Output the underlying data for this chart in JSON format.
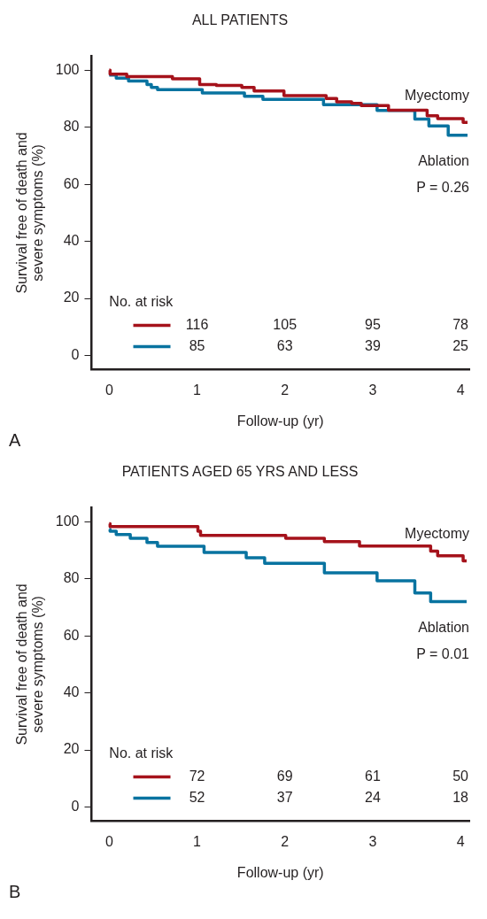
{
  "chart_data": [
    {
      "type": "step",
      "title": "ALL PATIENTS",
      "xlabel": "Follow-up (yr)",
      "ylabel": "Survival free of death and\nsevere symptoms (%)",
      "xlim": [
        -0.2,
        4.1
      ],
      "xticks": [
        0,
        1,
        2,
        3,
        4
      ],
      "ylim": [
        -5,
        105
      ],
      "yticks": [
        0,
        20,
        40,
        60,
        80,
        100
      ],
      "grid": false,
      "legend": false,
      "marker": "none",
      "line_style": "solid",
      "series": [
        {
          "name": "Myectomy",
          "color": "#a5121b",
          "x": [
            0,
            0.01,
            0.2,
            0.72,
            1.03,
            1.22,
            1.51,
            1.65,
            1.99,
            2.47,
            2.59,
            2.76,
            2.87,
            3.18,
            3.62,
            3.74,
            4.03,
            4.08
          ],
          "values": [
            100,
            98.6,
            97.8,
            97,
            95,
            94.7,
            94,
            92.7,
            91.1,
            90.1,
            88.9,
            88.4,
            87.6,
            86,
            84,
            83,
            81.7,
            81.7
          ]
        },
        {
          "name": "Ablation",
          "color": "#0873a0",
          "x": [
            0,
            0.08,
            0.22,
            0.43,
            0.48,
            0.55,
            1.06,
            1.54,
            1.75,
            2.44,
            3.05,
            3.48,
            3.64,
            3.86,
            4.08
          ],
          "values": [
            98.3,
            97.2,
            96.2,
            95,
            94,
            93.2,
            92,
            90.9,
            89.8,
            87.9,
            85.9,
            82.9,
            80.5,
            77.2,
            77.2
          ]
        }
      ],
      "annotations": [
        "P = 0.26",
        "No. at risk",
        "116",
        "105",
        "95",
        "78",
        "85",
        "63",
        "39",
        "25",
        "A"
      ]
    },
    {
      "type": "step",
      "title": "PATIENTS AGED 65 YRS AND LESS",
      "xlabel": "Follow-up (yr)",
      "ylabel": "Survival free of death and\nsevere symptoms (%)",
      "xlim": [
        -0.2,
        4.1
      ],
      "xticks": [
        0,
        1,
        2,
        3,
        4
      ],
      "ylim": [
        -5,
        105
      ],
      "yticks": [
        0,
        20,
        40,
        60,
        80,
        100
      ],
      "grid": false,
      "legend": false,
      "marker": "none",
      "line_style": "solid",
      "series": [
        {
          "name": "Myectomy",
          "color": "#a5121b",
          "x": [
            0,
            0.01,
            1.01,
            1.04,
            2.01,
            2.45,
            2.85,
            3.66,
            3.74,
            4.03,
            4.07
          ],
          "values": [
            99.3,
            98.3,
            96.7,
            95.2,
            94.2,
            93,
            91.5,
            89.7,
            88.1,
            86.3,
            86.3
          ]
        },
        {
          "name": "Ablation",
          "color": "#0873a0",
          "x": [
            0,
            0.01,
            0.08,
            0.24,
            0.43,
            0.55,
            1.08,
            1.56,
            1.77,
            2.45,
            3.05,
            3.48,
            3.66,
            4.07
          ],
          "values": [
            97.3,
            96.7,
            95.5,
            94.2,
            92.7,
            91.4,
            89.2,
            87.4,
            85.4,
            82.1,
            79.3,
            75,
            72,
            72
          ]
        }
      ],
      "annotations": [
        "P = 0.01",
        "No. at risk",
        "72",
        "69",
        "61",
        "50",
        "52",
        "37",
        "24",
        "18",
        "B"
      ]
    }
  ]
}
